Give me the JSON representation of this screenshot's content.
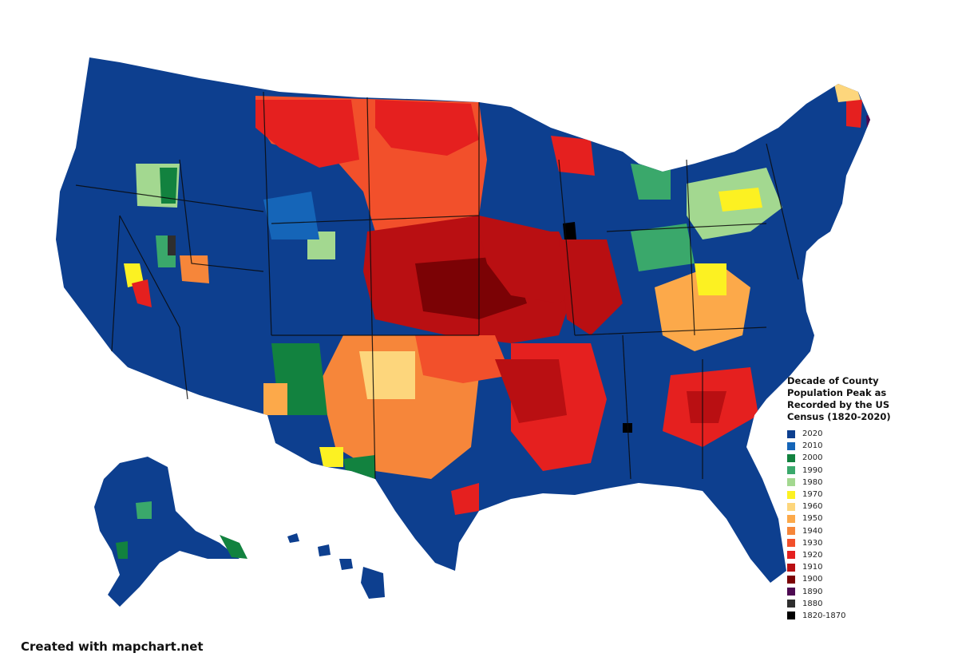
{
  "legend": {
    "title": "Decade of County Population Peak as Recorded by the US Census (1820-2020)",
    "items": [
      {
        "label": "2020",
        "color": "#0d3f8f"
      },
      {
        "label": "2010",
        "color": "#1565b8"
      },
      {
        "label": "2000",
        "color": "#12823f"
      },
      {
        "label": "1990",
        "color": "#3aa86b"
      },
      {
        "label": "1980",
        "color": "#a3d890"
      },
      {
        "label": "1970",
        "color": "#fcf122"
      },
      {
        "label": "1960",
        "color": "#fdd67c"
      },
      {
        "label": "1950",
        "color": "#fca94a"
      },
      {
        "label": "1940",
        "color": "#f6863a"
      },
      {
        "label": "1930",
        "color": "#f2502b"
      },
      {
        "label": "1920",
        "color": "#e5201f"
      },
      {
        "label": "1910",
        "color": "#b90f12"
      },
      {
        "label": "1900",
        "color": "#7b0205"
      },
      {
        "label": "1890",
        "color": "#4d0a52"
      },
      {
        "label": "1880",
        "color": "#2e2e2e"
      },
      {
        "label": "1820-1870",
        "color": "#000000"
      }
    ]
  },
  "credit": "Created with mapchart.net",
  "regions": [
    {
      "id": "west-coast-north",
      "peak": "2020"
    },
    {
      "id": "california",
      "peak": "2020"
    },
    {
      "id": "mountain-west",
      "peak": "2020"
    },
    {
      "id": "great-plains-north",
      "peak": "1930"
    },
    {
      "id": "great-plains-central",
      "peak": "1910"
    },
    {
      "id": "texas-west",
      "peak": "1940"
    },
    {
      "id": "midwest-east",
      "peak": "2020"
    },
    {
      "id": "appalachia",
      "peak": "1950"
    },
    {
      "id": "southeast",
      "peak": "2020"
    },
    {
      "id": "florida",
      "peak": "2020"
    },
    {
      "id": "northeast",
      "peak": "2020"
    },
    {
      "id": "alaska",
      "peak": "2020"
    },
    {
      "id": "hawaii",
      "peak": "2020"
    }
  ]
}
